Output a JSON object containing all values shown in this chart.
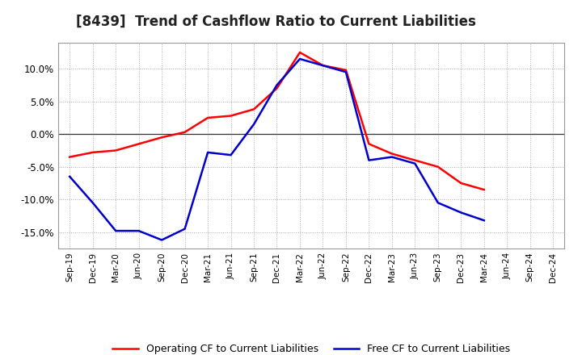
{
  "title": "[8439]  Trend of Cashflow Ratio to Current Liabilities",
  "x_labels": [
    "Sep-19",
    "Dec-19",
    "Mar-20",
    "Jun-20",
    "Sep-20",
    "Dec-20",
    "Mar-21",
    "Jun-21",
    "Sep-21",
    "Dec-21",
    "Mar-22",
    "Jun-22",
    "Sep-22",
    "Dec-22",
    "Mar-23",
    "Jun-23",
    "Sep-23",
    "Dec-23",
    "Mar-24",
    "Jun-24",
    "Sep-24",
    "Dec-24"
  ],
  "operating_cf": [
    -3.5,
    -2.8,
    -2.5,
    -1.5,
    -0.5,
    0.3,
    2.5,
    2.8,
    3.8,
    7.0,
    12.5,
    10.5,
    9.8,
    -1.5,
    -3.0,
    -4.0,
    -5.0,
    -7.5,
    -8.5,
    null,
    null,
    null
  ],
  "free_cf": [
    -6.5,
    -10.5,
    -14.8,
    -14.8,
    -16.2,
    -14.5,
    -2.8,
    -3.2,
    1.5,
    7.5,
    11.5,
    10.5,
    9.5,
    -4.0,
    -3.5,
    -4.5,
    -10.5,
    -12.0,
    -13.2,
    null,
    null,
    null
  ],
  "operating_color": "#FF0000",
  "free_color": "#0000CD",
  "ylim": [
    -17.5,
    14.0
  ],
  "yticks": [
    -15.0,
    -10.0,
    -5.0,
    0.0,
    5.0,
    10.0
  ],
  "ytick_labels": [
    "-15.0%",
    "-10.0%",
    "-5.0%",
    "0.0%",
    "5.0%",
    "10.0%"
  ],
  "legend_operating": "Operating CF to Current Liabilities",
  "legend_free": "Free CF to Current Liabilities",
  "background_color": "#FFFFFF",
  "plot_bg_color": "#FFFFFF",
  "grid_color": "#AAAAAA",
  "line_width": 1.8,
  "title_fontsize": 12
}
